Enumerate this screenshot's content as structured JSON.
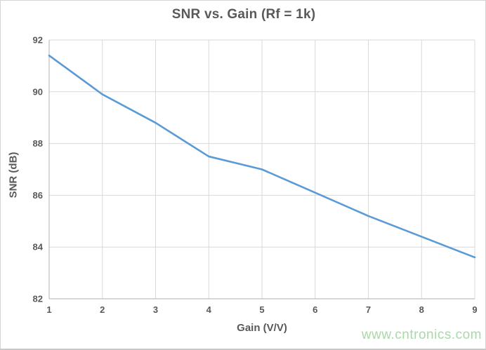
{
  "page": {
    "watermark": "www.cntronics.com"
  },
  "chart_data": {
    "type": "line",
    "title": "SNR vs. Gain (Rf = 1k)",
    "xlabel": "Gain (V/V)",
    "ylabel": "SNR (dB)",
    "x": [
      1,
      2,
      3,
      4,
      5,
      6,
      7,
      8,
      9
    ],
    "y": [
      91.4,
      89.9,
      88.8,
      87.5,
      87.0,
      86.1,
      85.2,
      84.4,
      83.6
    ],
    "series_name": "SNR",
    "xlim": [
      1,
      9
    ],
    "ylim": [
      82,
      92
    ],
    "x_ticks": [
      1,
      2,
      3,
      4,
      5,
      6,
      7,
      8,
      9
    ],
    "y_ticks": [
      82,
      84,
      86,
      88,
      90,
      92
    ],
    "grid": true,
    "legend": false,
    "colors": {
      "line": "#5b9bd5",
      "grid": "#d9d9d9",
      "axis": "#bfbfbf",
      "text": "#595959",
      "watermark": "#a9d8a9"
    }
  }
}
